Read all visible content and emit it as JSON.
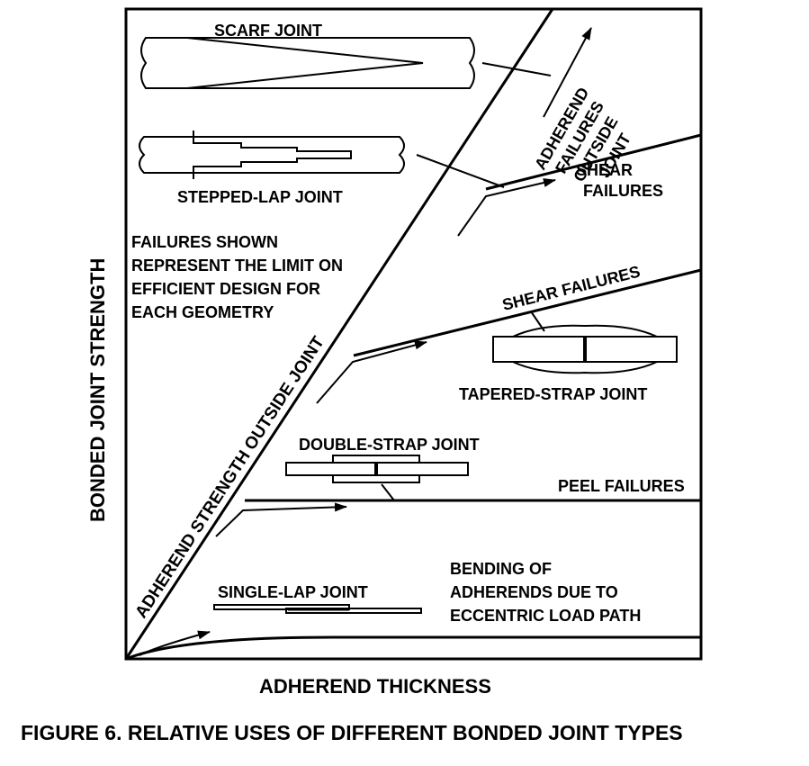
{
  "figure": {
    "caption": "FIGURE 6.  RELATIVE USES OF DIFFERENT BONDED JOINT TYPES",
    "x_axis_label": "ADHEREND THICKNESS",
    "y_axis_label": "BONDED JOINT STRENGTH"
  },
  "joints": {
    "scarf": "SCARF JOINT",
    "stepped_lap": "STEPPED-LAP JOINT",
    "tapered_strap": "TAPERED-STRAP JOINT",
    "double_strap": "DOUBLE-STRAP JOINT",
    "single_lap": "SINGLE-LAP JOINT"
  },
  "failure_modes": {
    "adherend_outside_lines": [
      "ADHEREND",
      "FAILURES",
      "OUTSIDE",
      "JOINT"
    ],
    "shear_upper_lines": [
      "SHEAR",
      "FAILURES"
    ],
    "shear_middle": "SHEAR FAILURES",
    "peel": "PEEL FAILURES",
    "bending_lines": [
      "BENDING OF",
      "ADHERENDS DUE TO",
      "ECCENTRIC LOAD PATH"
    ]
  },
  "diagonal_label": "ADHEREND STRENGTH OUTSIDE JOINT",
  "note_lines": [
    "FAILURES SHOWN",
    "REPRESENT THE LIMIT ON",
    "EFFICIENT DESIGN FOR",
    "EACH GEOMETRY"
  ]
}
